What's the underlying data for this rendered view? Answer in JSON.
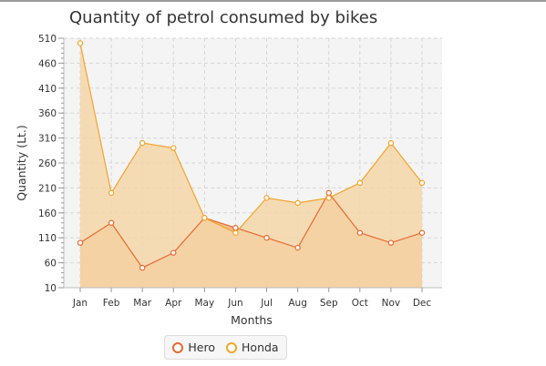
{
  "chart_data": {
    "type": "area",
    "title": "Quantity of petrol consumed by bikes",
    "xlabel": "Months",
    "ylabel": "Quantity (Lt.)",
    "categories": [
      "Jan",
      "Feb",
      "Mar",
      "Apr",
      "May",
      "Jun",
      "Jul",
      "Aug",
      "Sep",
      "Oct",
      "Nov",
      "Dec"
    ],
    "ylim": [
      10,
      510
    ],
    "yticks": [
      10,
      60,
      110,
      160,
      210,
      260,
      310,
      360,
      410,
      460,
      510
    ],
    "grid": true,
    "legend_position": "bottom",
    "series": [
      {
        "name": "Hero",
        "color": "#e8692e",
        "fill": "#f4ad7a",
        "values": [
          100,
          140,
          50,
          80,
          150,
          130,
          110,
          90,
          200,
          120,
          100,
          120
        ]
      },
      {
        "name": "Honda",
        "color": "#f3a42a",
        "fill": "#f5d6a8",
        "values": [
          500,
          200,
          300,
          290,
          150,
          120,
          190,
          180,
          190,
          220,
          300,
          220
        ]
      }
    ]
  }
}
